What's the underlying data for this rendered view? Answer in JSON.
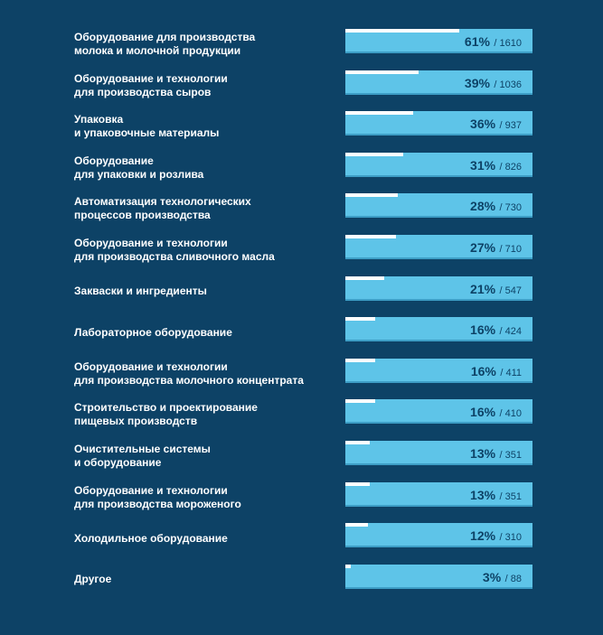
{
  "colors": {
    "background": "#0d4266",
    "bar": "#5ec4e8",
    "bar_fill": "#ffffff",
    "value_text": "#0d4266"
  },
  "chart_data": {
    "type": "bar",
    "orientation": "horizontal",
    "title": "",
    "xlabel": "",
    "ylabel": "",
    "xlim": [
      0,
      100
    ],
    "categories": [
      "Оборудование для производства\nмолока и молочной продукции",
      "Оборудование и технологии\nдля производства сыров",
      "Упаковка\nи упаковочные материалы",
      "Оборудование\nдля упаковки и розлива",
      "Автоматизация технологических\nпроцессов производства",
      "Оборудование и технологии\nдля производства сливочного масла",
      "Закваски и ингредиенты",
      "Лабораторное оборудование",
      "Оборудование и технологии\nдля производства молочного концентрата",
      "Строительство и проектирование\nпищевых производств",
      "Очистительные системы\nи оборудование",
      "Оборудование и технологии\nдля производства мороженого",
      "Холодильное оборудование",
      "Другое"
    ],
    "series": [
      {
        "values": [
          61,
          39,
          36,
          31,
          28,
          27,
          21,
          16,
          16,
          16,
          13,
          13,
          12,
          3
        ],
        "counts": [
          1610,
          1036,
          937,
          826,
          730,
          710,
          547,
          424,
          411,
          410,
          351,
          351,
          310,
          88
        ]
      }
    ],
    "value_suffix": "%",
    "count_prefix": "/ ",
    "grid": false,
    "legend": "none"
  }
}
